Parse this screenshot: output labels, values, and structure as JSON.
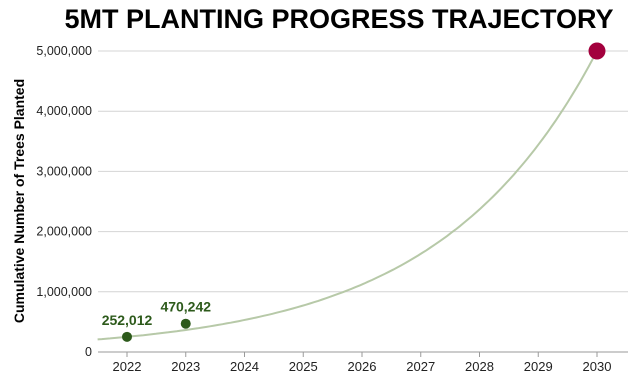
{
  "chart_data": {
    "type": "line",
    "title": "5MT PLANTING PROGRESS TRAJECTORY",
    "xlabel": "",
    "ylabel": "Cumulative Number of Trees Planted",
    "x": [
      2022,
      2023,
      2030
    ],
    "x_ticks": [
      "2022",
      "2023",
      "2024",
      "2025",
      "2026",
      "2027",
      "2028",
      "2029",
      "2030"
    ],
    "y_ticks": [
      "0",
      "1,000,000",
      "2,000,000",
      "3,000,000",
      "4,000,000",
      "5,000,000"
    ],
    "ylim": [
      0,
      5000000
    ],
    "grid": true,
    "series": [
      {
        "values": [
          252012,
          470242,
          5000000
        ],
        "point_labels": [
          "252,012",
          "470,242",
          ""
        ],
        "point_colors": [
          "#2d5a1b",
          "#2d5a1b",
          "#a3003d"
        ]
      }
    ],
    "curve_color": "#b7c9a8"
  }
}
